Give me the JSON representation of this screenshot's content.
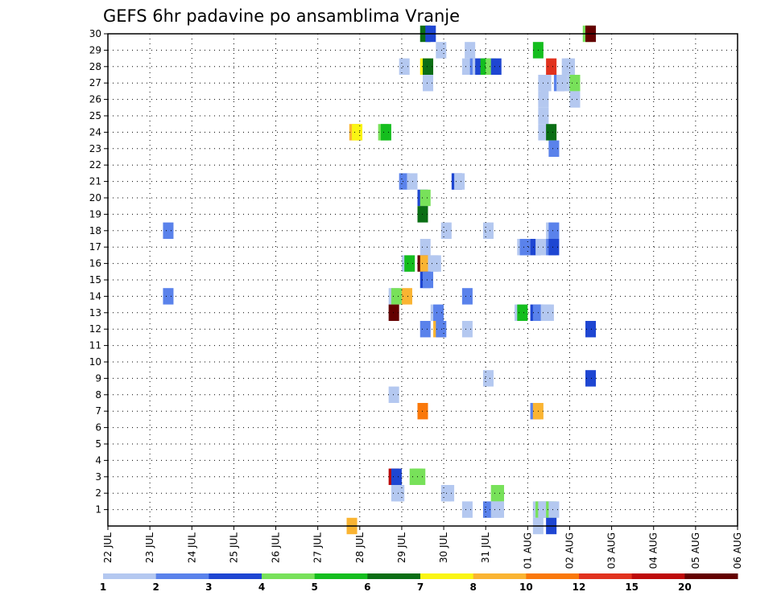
{
  "chart_data": {
    "type": "heatmap",
    "title": "GEFS 6hr padavine po ansamblima Vranje",
    "y_ticks": [
      "1",
      "2",
      "3",
      "4",
      "5",
      "6",
      "7",
      "8",
      "9",
      "10",
      "11",
      "12",
      "13",
      "14",
      "15",
      "16",
      "17",
      "18",
      "19",
      "20",
      "21",
      "22",
      "23",
      "24",
      "25",
      "26",
      "27",
      "28",
      "29",
      "30"
    ],
    "ylim": [
      0,
      30
    ],
    "x_ticks": [
      "22 JUL",
      "23 JUL",
      "24 JUL",
      "25 JUL",
      "26 JUL",
      "27 JUL",
      "28 JUL",
      "29 JUL",
      "30 JUL",
      "31 JUL",
      "01 AUG",
      "02 AUG",
      "03 AUG",
      "04 AUG",
      "05 AUG",
      "06 AUG"
    ],
    "x_step_hours": 6,
    "grid": true,
    "colorbar": {
      "labels": [
        "1",
        "2",
        "3",
        "4",
        "5",
        "6",
        "7",
        "8",
        "10",
        "12",
        "15",
        "20"
      ],
      "colors": [
        "#b4c8f0",
        "#5a82eb",
        "#1e46d2",
        "#78e15a",
        "#14be1e",
        "#0a6e14",
        "#faf514",
        "#fab432",
        "#fa780a",
        "#e1321e",
        "#be0a0a",
        "#640000"
      ]
    },
    "cells": [
      {
        "member": 30,
        "x": 29.75,
        "c": 5
      },
      {
        "member": 30,
        "x": 30.25,
        "c": 2
      },
      {
        "member": 30,
        "x": 45.25,
        "c": 3
      },
      {
        "member": 30,
        "x": 45.5,
        "c": 11
      },
      {
        "member": 29,
        "x": 31.25,
        "c": 0
      },
      {
        "member": 29,
        "x": 34.0,
        "c": 0
      },
      {
        "member": 29,
        "x": 40.5,
        "c": 4
      },
      {
        "member": 28,
        "x": 27.75,
        "c": 0
      },
      {
        "member": 28,
        "x": 29.75,
        "c": 6
      },
      {
        "member": 28,
        "x": 30.0,
        "c": 5
      },
      {
        "member": 28,
        "x": 33.75,
        "c": 0
      },
      {
        "member": 28,
        "x": 34.5,
        "c": 1
      },
      {
        "member": 28,
        "x": 34.75,
        "c": 0
      },
      {
        "member": 28,
        "x": 35.0,
        "c": 2
      },
      {
        "member": 28,
        "x": 35.5,
        "c": 4
      },
      {
        "member": 28,
        "x": 36.0,
        "c": 3
      },
      {
        "member": 28,
        "x": 36.5,
        "c": 2
      },
      {
        "member": 28,
        "x": 41.75,
        "c": 9
      },
      {
        "member": 28,
        "x": 43.25,
        "c": 0
      },
      {
        "member": 28,
        "x": 43.5,
        "c": 0
      },
      {
        "member": 27,
        "x": 30.0,
        "c": 0
      },
      {
        "member": 27,
        "x": 41.0,
        "c": 0
      },
      {
        "member": 27,
        "x": 41.25,
        "c": 0
      },
      {
        "member": 27,
        "x": 42.5,
        "c": 1
      },
      {
        "member": 27,
        "x": 42.75,
        "c": 0
      },
      {
        "member": 27,
        "x": 43.75,
        "c": 0
      },
      {
        "member": 27,
        "x": 44.0,
        "c": 3
      },
      {
        "member": 26,
        "x": 41.0,
        "c": 0
      },
      {
        "member": 26,
        "x": 44.0,
        "c": 0
      },
      {
        "member": 25,
        "x": 41.0,
        "c": 0
      },
      {
        "member": 24,
        "x": 23.0,
        "c": 7
      },
      {
        "member": 24,
        "x": 23.25,
        "c": 6
      },
      {
        "member": 24,
        "x": 25.75,
        "c": 3
      },
      {
        "member": 24,
        "x": 26.0,
        "c": 4
      },
      {
        "member": 24,
        "x": 41.0,
        "c": 0
      },
      {
        "member": 24,
        "x": 41.75,
        "c": 5
      },
      {
        "member": 23,
        "x": 42.0,
        "c": 1
      },
      {
        "member": 21,
        "x": 27.75,
        "c": 1
      },
      {
        "member": 21,
        "x": 28.5,
        "c": 0
      },
      {
        "member": 21,
        "x": 32.75,
        "c": 2
      },
      {
        "member": 21,
        "x": 33.0,
        "c": 0
      },
      {
        "member": 20,
        "x": 29.5,
        "c": 2
      },
      {
        "member": 20,
        "x": 29.75,
        "c": 3
      },
      {
        "member": 19,
        "x": 29.5,
        "c": 5
      },
      {
        "member": 18,
        "x": 5.25,
        "c": 1
      },
      {
        "member": 18,
        "x": 31.75,
        "c": 0
      },
      {
        "member": 18,
        "x": 35.75,
        "c": 0
      },
      {
        "member": 18,
        "x": 41.75,
        "c": 0
      },
      {
        "member": 18,
        "x": 42.0,
        "c": 1
      },
      {
        "member": 17,
        "x": 29.75,
        "c": 0
      },
      {
        "member": 17,
        "x": 39.0,
        "c": 0
      },
      {
        "member": 17,
        "x": 39.25,
        "c": 1
      },
      {
        "member": 17,
        "x": 40.25,
        "c": 2
      },
      {
        "member": 17,
        "x": 40.75,
        "c": 0
      },
      {
        "member": 17,
        "x": 41.75,
        "c": 1
      },
      {
        "member": 17,
        "x": 42.0,
        "c": 2
      },
      {
        "member": 16,
        "x": 28.0,
        "c": 0
      },
      {
        "member": 16,
        "x": 28.25,
        "c": 4
      },
      {
        "member": 16,
        "x": 29.5,
        "c": 11
      },
      {
        "member": 16,
        "x": 29.75,
        "c": 7
      },
      {
        "member": 16,
        "x": 30.5,
        "c": 0
      },
      {
        "member": 16,
        "x": 30.75,
        "c": 0
      },
      {
        "member": 15,
        "x": 29.75,
        "c": 2
      },
      {
        "member": 15,
        "x": 30.0,
        "c": 1
      },
      {
        "member": 14,
        "x": 5.25,
        "c": 1
      },
      {
        "member": 14,
        "x": 26.75,
        "c": 0
      },
      {
        "member": 14,
        "x": 27.0,
        "c": 3
      },
      {
        "member": 14,
        "x": 28.0,
        "c": 7
      },
      {
        "member": 14,
        "x": 33.75,
        "c": 1
      },
      {
        "member": 13,
        "x": 26.75,
        "c": 11
      },
      {
        "member": 13,
        "x": 30.75,
        "c": 0
      },
      {
        "member": 13,
        "x": 31.0,
        "c": 1
      },
      {
        "member": 13,
        "x": 38.75,
        "c": 0
      },
      {
        "member": 13,
        "x": 39.0,
        "c": 4
      },
      {
        "member": 13,
        "x": 40.25,
        "c": 2
      },
      {
        "member": 13,
        "x": 40.5,
        "c": 1
      },
      {
        "member": 13,
        "x": 41.25,
        "c": 0
      },
      {
        "member": 13,
        "x": 41.5,
        "c": 0
      },
      {
        "member": 12,
        "x": 29.75,
        "c": 1
      },
      {
        "member": 12,
        "x": 31.0,
        "c": 7
      },
      {
        "member": 12,
        "x": 31.25,
        "c": 1
      },
      {
        "member": 12,
        "x": 33.75,
        "c": 0
      },
      {
        "member": 12,
        "x": 45.5,
        "c": 2
      },
      {
        "member": 9,
        "x": 35.75,
        "c": 0
      },
      {
        "member": 9,
        "x": 45.5,
        "c": 2
      },
      {
        "member": 8,
        "x": 26.75,
        "c": 0
      },
      {
        "member": 7,
        "x": 29.5,
        "c": 8
      },
      {
        "member": 7,
        "x": 40.25,
        "c": 1
      },
      {
        "member": 7,
        "x": 40.5,
        "c": 7
      },
      {
        "member": 3,
        "x": 26.75,
        "c": 10
      },
      {
        "member": 3,
        "x": 27.0,
        "c": 2
      },
      {
        "member": 3,
        "x": 28.75,
        "c": 3
      },
      {
        "member": 3,
        "x": 29.0,
        "c": 3
      },
      {
        "member": 3,
        "x": 29.25,
        "c": 3
      },
      {
        "member": 2,
        "x": 27.0,
        "c": 0
      },
      {
        "member": 2,
        "x": 27.25,
        "c": 0
      },
      {
        "member": 2,
        "x": 31.75,
        "c": 0
      },
      {
        "member": 2,
        "x": 32.0,
        "c": 0
      },
      {
        "member": 2,
        "x": 36.5,
        "c": 3
      },
      {
        "member": 2,
        "x": 36.75,
        "c": 3
      },
      {
        "member": 1,
        "x": 33.75,
        "c": 0
      },
      {
        "member": 1,
        "x": 35.75,
        "c": 1
      },
      {
        "member": 1,
        "x": 36.5,
        "c": 0
      },
      {
        "member": 1,
        "x": 36.75,
        "c": 0
      },
      {
        "member": 1,
        "x": 40.5,
        "c": 0
      },
      {
        "member": 1,
        "x": 40.75,
        "c": 3
      },
      {
        "member": 1,
        "x": 41.0,
        "c": 0
      },
      {
        "member": 1,
        "x": 41.25,
        "c": 0
      },
      {
        "member": 1,
        "x": 41.5,
        "c": 0
      },
      {
        "member": 1,
        "x": 41.75,
        "c": 3
      },
      {
        "member": 1,
        "x": 42.0,
        "c": 0
      },
      {
        "member": 0,
        "x": 22.75,
        "c": 7
      },
      {
        "member": 0,
        "x": 40.5,
        "c": 0
      },
      {
        "member": 0,
        "x": 41.75,
        "c": 2
      }
    ]
  }
}
